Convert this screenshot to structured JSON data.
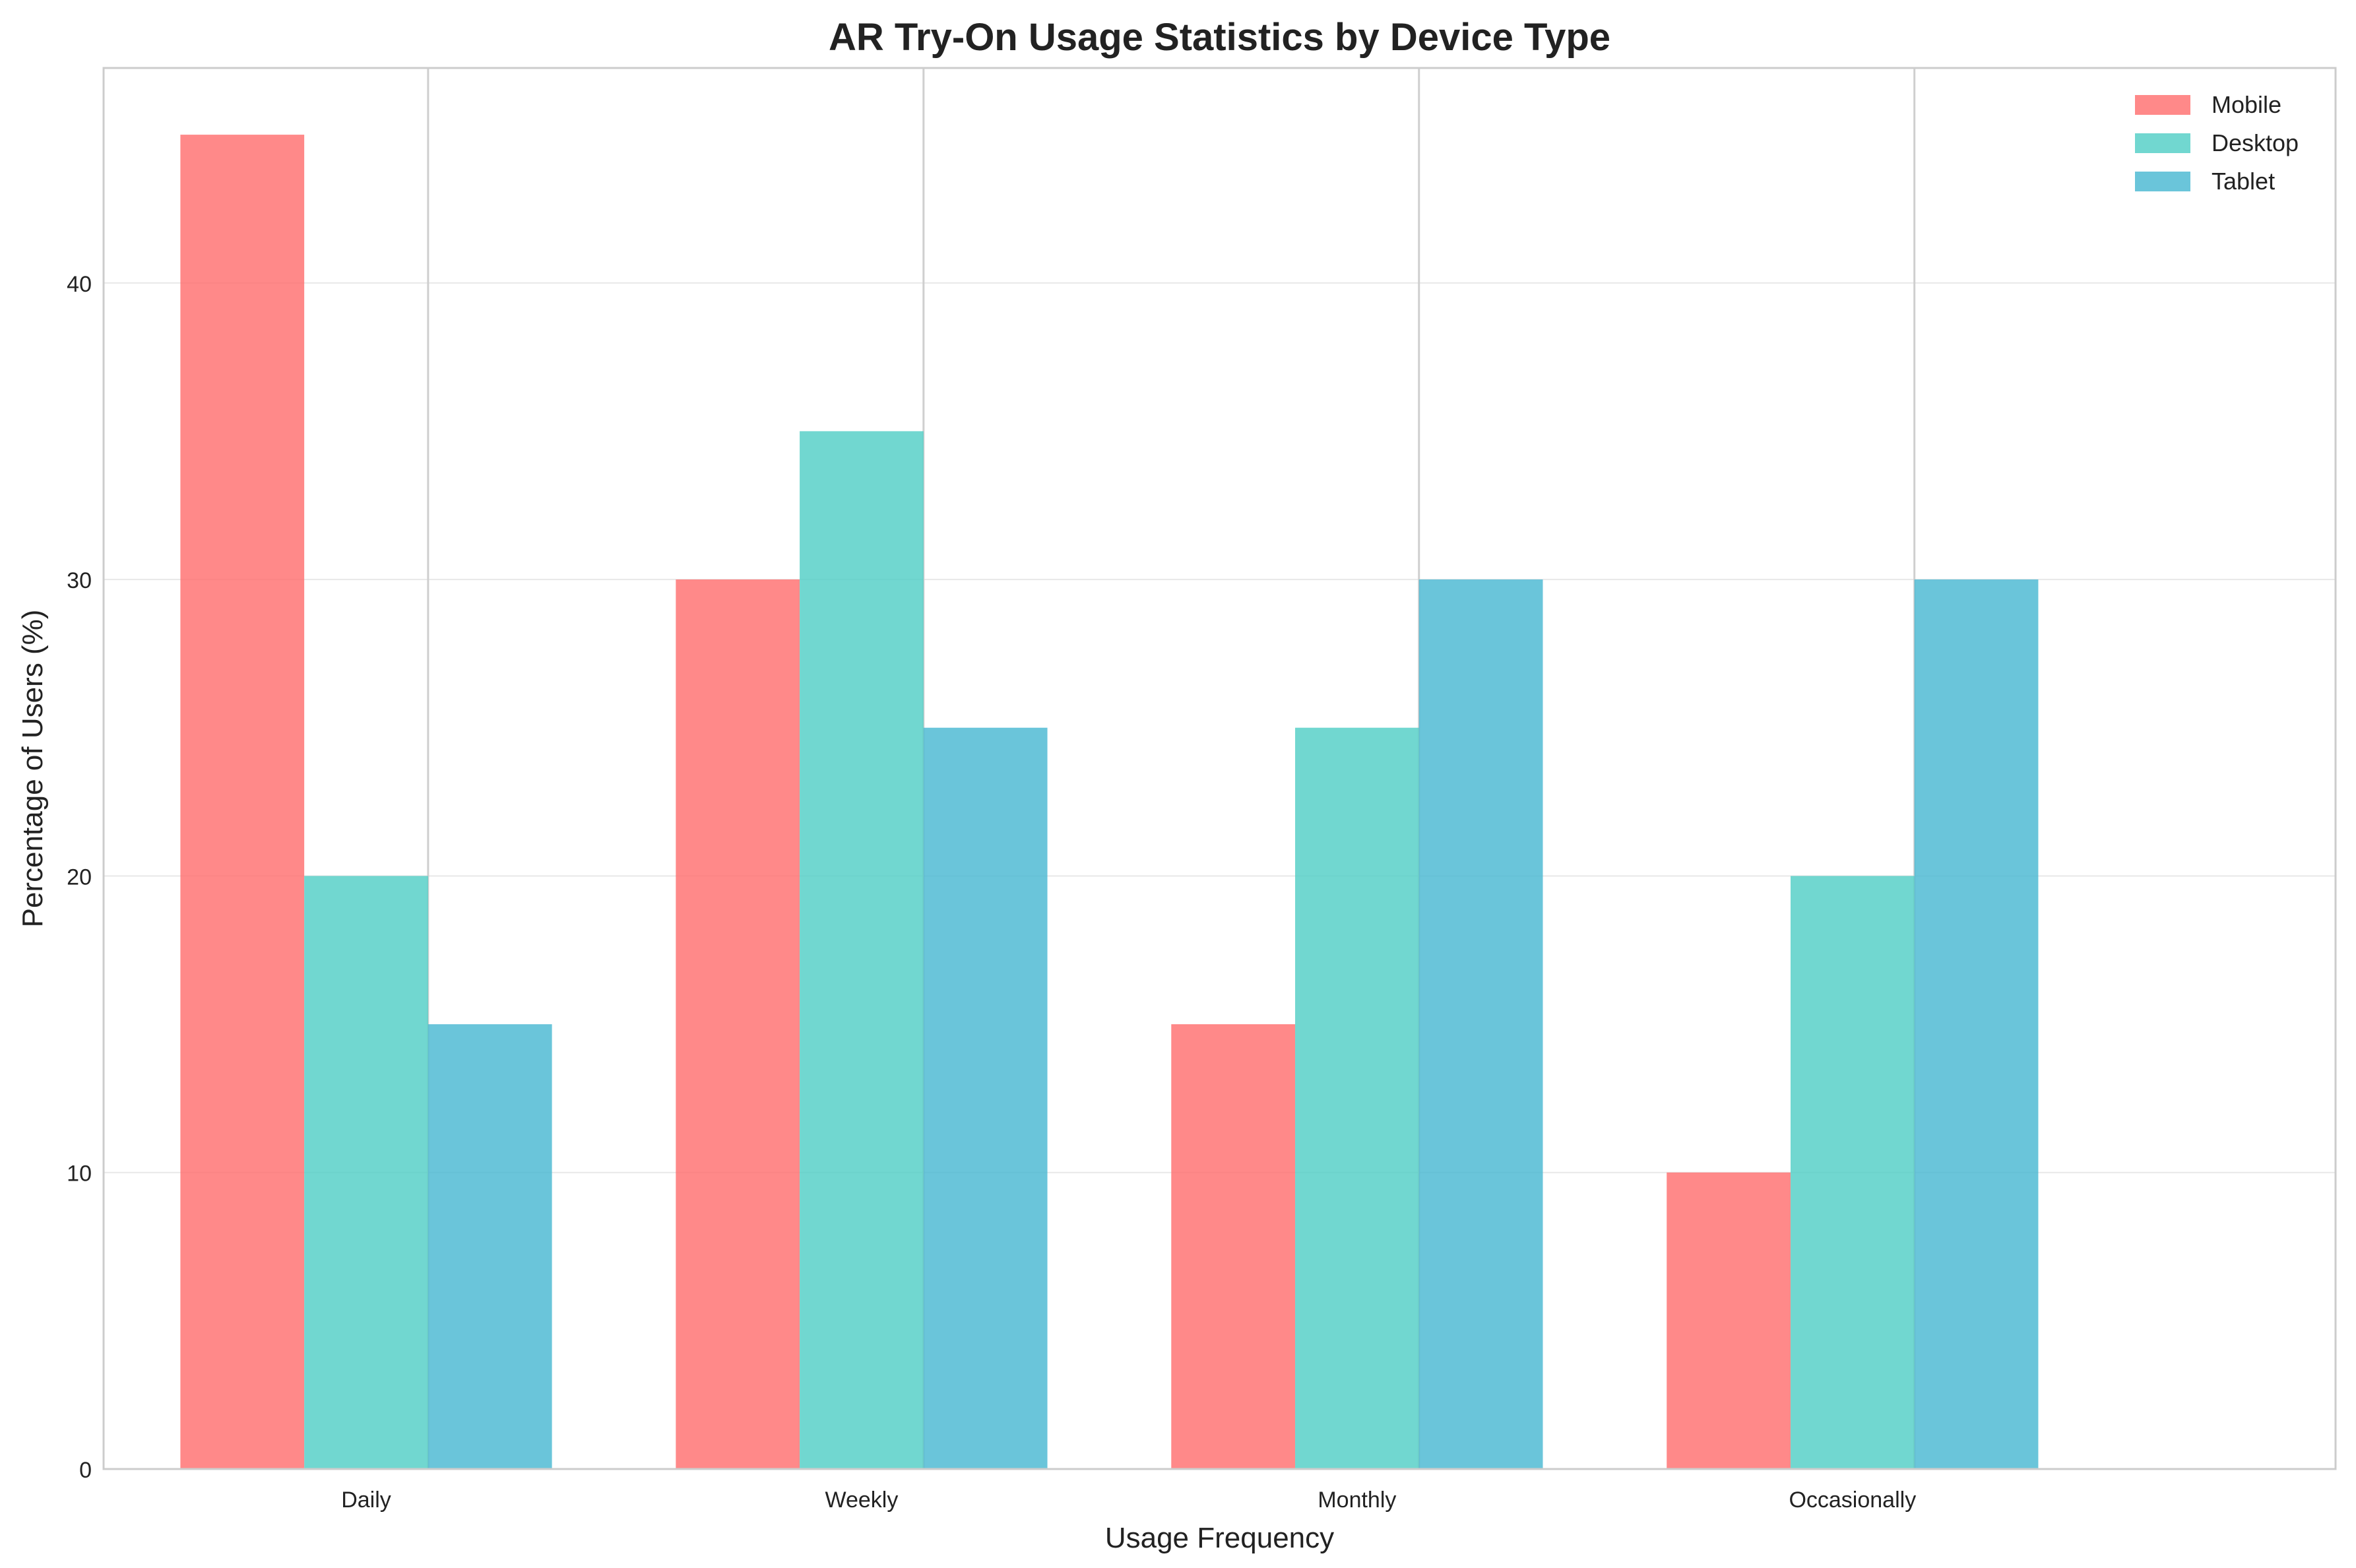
{
  "chart_data": {
    "type": "bar",
    "title": "AR Try-On Usage Statistics by Device Type",
    "xlabel": "Usage Frequency",
    "ylabel": "Percentage of Users (%)",
    "categories": [
      "Daily",
      "Weekly",
      "Monthly",
      "Occasionally"
    ],
    "series": [
      {
        "name": "Mobile",
        "values": [
          45,
          30,
          15,
          10
        ],
        "color": "#FF6B6B"
      },
      {
        "name": "Desktop",
        "values": [
          20,
          35,
          25,
          20
        ],
        "color": "#4ECDC4"
      },
      {
        "name": "Tablet",
        "values": [
          15,
          25,
          30,
          30
        ],
        "color": "#45B7D1"
      }
    ],
    "ylim": [
      0,
      47.25
    ],
    "yticks": [
      0,
      10,
      20,
      30,
      40
    ],
    "grid": true,
    "legend_position": "top-right"
  }
}
